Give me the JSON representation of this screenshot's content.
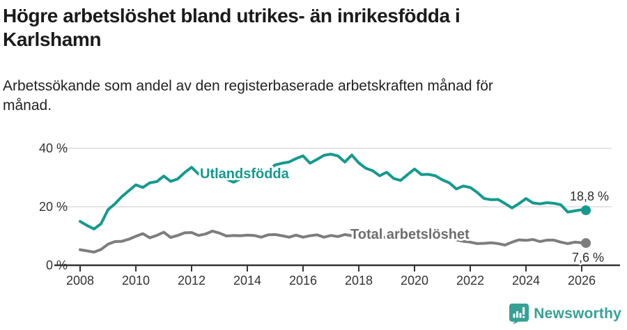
{
  "header": {
    "title": "Högre arbetslöshet bland utrikes- än inrikesfödda i\nKarlshamn",
    "subtitle": "Arbetssökande som andel av den registerbaserade arbetskraften månad för\nmånad."
  },
  "footer": {
    "brand": "Newsworthy",
    "brand_color": "#36a095",
    "icon": "bar-chart-speech-bubble-icon"
  },
  "colors": {
    "grid": "#dcdcdc",
    "axis": "#333333",
    "tick_text": "#333333",
    "value_label_text": "#2d2d2d"
  },
  "chart_data": {
    "type": "line",
    "title": "Högre arbetslöshet bland utrikes- än inrikesfödda i Karlshamn",
    "subtitle": "Arbetssökande som andel av den registerbaserade arbetskraften månad för månad.",
    "grid": true,
    "x_axis": {
      "min": 2008,
      "max": 2026.15,
      "ticks": [
        2008,
        2010,
        2012,
        2014,
        2016,
        2018,
        2020,
        2022,
        2024,
        2026
      ]
    },
    "y_axis": {
      "min": 0,
      "max": 42,
      "unit": "%",
      "ticks": [
        {
          "value": 0,
          "label": "0 %"
        },
        {
          "value": 20,
          "label": "20 %"
        },
        {
          "value": 40,
          "label": "40 %"
        }
      ]
    },
    "x": [
      2008.0,
      2008.25,
      2008.5,
      2008.75,
      2009.0,
      2009.25,
      2009.5,
      2009.75,
      2010.0,
      2010.25,
      2010.5,
      2010.75,
      2011.0,
      2011.25,
      2011.5,
      2011.75,
      2012.0,
      2012.25,
      2012.5,
      2012.75,
      2013.0,
      2013.25,
      2013.5,
      2013.75,
      2014.0,
      2014.25,
      2014.5,
      2014.75,
      2015.0,
      2015.25,
      2015.5,
      2015.75,
      2016.0,
      2016.25,
      2016.5,
      2016.75,
      2017.0,
      2017.25,
      2017.5,
      2017.75,
      2018.0,
      2018.25,
      2018.5,
      2018.75,
      2019.0,
      2019.25,
      2019.5,
      2019.75,
      2020.0,
      2020.25,
      2020.5,
      2020.75,
      2021.0,
      2021.25,
      2021.5,
      2021.75,
      2022.0,
      2022.25,
      2022.5,
      2022.75,
      2023.0,
      2023.25,
      2023.5,
      2023.75,
      2024.0,
      2024.25,
      2024.5,
      2024.75,
      2025.0,
      2025.25,
      2025.5,
      2025.75,
      2026.0,
      2026.15
    ],
    "series": [
      {
        "name": "Utlandsfödda",
        "color": "#149a8e",
        "label_color": "#149a8e",
        "end_label": "18,8 %",
        "end_value": 18.8,
        "values": [
          15.0,
          13.6,
          12.4,
          14.2,
          19.0,
          21.0,
          23.5,
          25.5,
          27.5,
          26.6,
          28.2,
          28.6,
          30.5,
          28.7,
          29.5,
          31.7,
          33.5,
          31.2,
          30.2,
          30.8,
          31.5,
          29.5,
          28.4,
          29.5,
          30.6,
          30.2,
          31.5,
          32.5,
          34.3,
          34.9,
          35.3,
          36.5,
          37.4,
          34.9,
          36.2,
          37.6,
          38.0,
          37.4,
          35.3,
          37.7,
          35.0,
          33.2,
          32.3,
          30.6,
          31.8,
          29.7,
          29.0,
          31.0,
          32.9,
          31.0,
          31.1,
          30.6,
          29.2,
          28.2,
          26.1,
          27.1,
          26.6,
          24.9,
          22.8,
          22.4,
          22.5,
          21.1,
          19.6,
          21.1,
          22.8,
          21.3,
          21.0,
          21.4,
          21.2,
          20.7,
          18.2,
          18.6,
          19.0,
          18.8
        ]
      },
      {
        "name": "Total arbetslöshet",
        "color": "#7d7d7d",
        "label_color": "#6d6d6d",
        "end_label": "7,6 %",
        "end_value": 7.6,
        "values": [
          5.3,
          4.9,
          4.5,
          5.4,
          7.2,
          8.1,
          8.2,
          8.9,
          9.9,
          10.8,
          9.4,
          10.2,
          11.3,
          9.5,
          10.2,
          11.1,
          11.2,
          10.2,
          10.7,
          11.7,
          11.0,
          10.0,
          10.2,
          10.1,
          10.3,
          10.2,
          9.6,
          10.4,
          10.5,
          10.1,
          9.6,
          10.3,
          9.6,
          10.1,
          10.4,
          9.6,
          10.2,
          9.8,
          10.5,
          10.1,
          10.4,
          9.9,
          9.5,
          9.3,
          9.7,
          9.3,
          9.0,
          9.4,
          9.8,
          10.6,
          10.8,
          10.4,
          10.0,
          9.4,
          8.7,
          8.2,
          7.9,
          7.4,
          7.5,
          7.7,
          7.4,
          6.9,
          7.9,
          8.7,
          8.5,
          8.8,
          8.1,
          8.6,
          8.6,
          7.9,
          7.4,
          7.9,
          7.7,
          7.6
        ]
      }
    ]
  }
}
